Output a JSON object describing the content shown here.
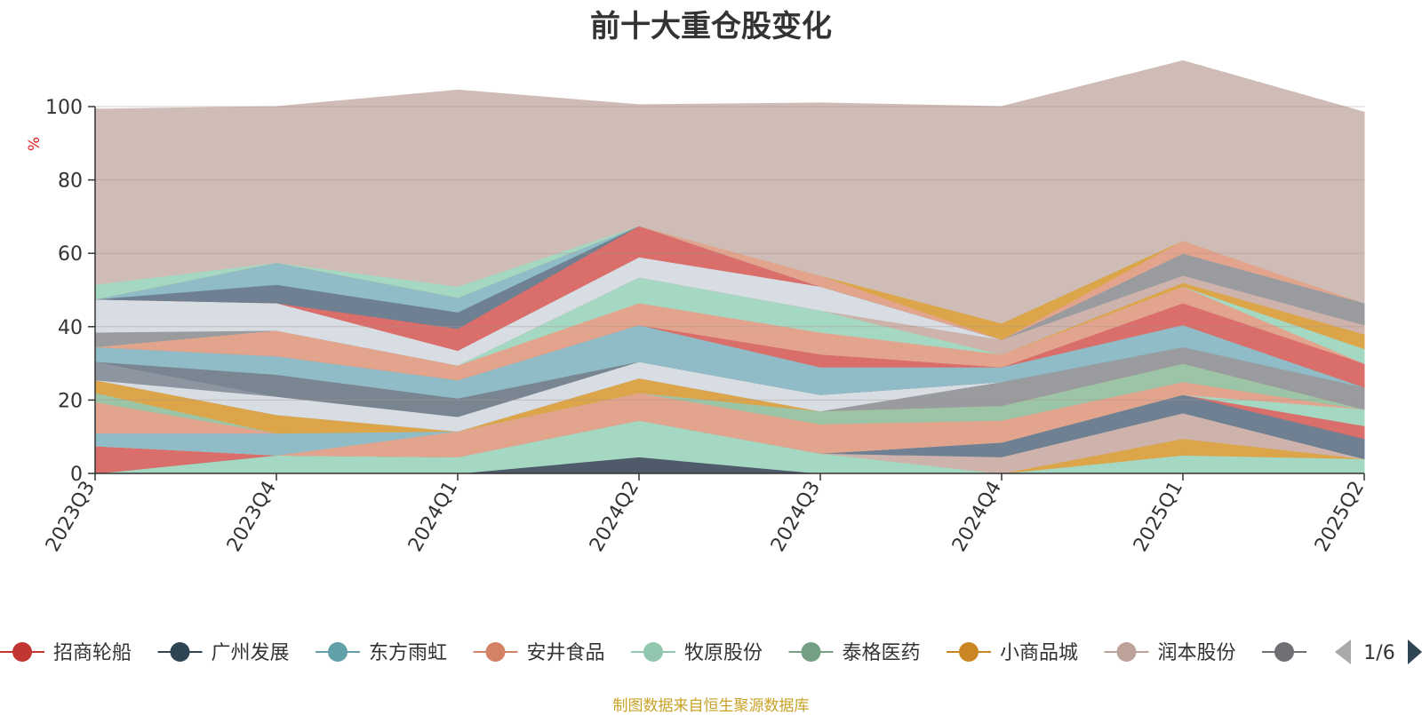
{
  "chart_data": {
    "type": "area",
    "title": "前十大重仓股变化",
    "ylabel": "%",
    "ylim": [
      0,
      100
    ],
    "yticks": [
      0,
      20,
      40,
      60,
      80,
      100
    ],
    "categories": [
      "2023Q3",
      "2023Q4",
      "2024Q1",
      "2024Q2",
      "2024Q3",
      "2024Q4",
      "2025Q1",
      "2025Q2"
    ],
    "grid": true,
    "legend_position": "bottom",
    "legend_page": "1/6",
    "series": [
      {
        "values": [
          0,
          0,
          0,
          4.5,
          0,
          0,
          0,
          0
        ],
        "color": "#4f5b6b"
      },
      {
        "values": [
          0,
          5,
          4.5,
          10,
          5.5,
          0,
          5,
          4
        ],
        "color": "#a5d8c3"
      },
      {
        "values": [
          0,
          0,
          0,
          0,
          0,
          0,
          4.5,
          0
        ],
        "color": "#dca54a"
      },
      {
        "values": [
          0,
          0,
          0,
          0,
          0,
          4.5,
          7,
          0
        ],
        "color": "#cdb3ac"
      },
      {
        "values": [
          0,
          0,
          0,
          0,
          0,
          4,
          5,
          5.5
        ],
        "color": "#6e8091"
      },
      {
        "values": [
          7.5,
          0,
          0,
          0,
          0,
          0,
          0,
          3.5
        ],
        "color": "#d96e6a"
      },
      {
        "values": [
          0,
          0,
          0,
          0,
          0,
          0,
          0,
          4.5
        ],
        "color": "#a5d8c3"
      },
      {
        "values": [
          0,
          0,
          7,
          7.5,
          8,
          6,
          3.5,
          0
        ],
        "color": "#e3a48e"
      },
      {
        "values": [
          3.5,
          6,
          0,
          0,
          0,
          0,
          0,
          0
        ],
        "color": "#8fbcc6"
      },
      {
        "values": [
          8.5,
          0,
          0,
          0,
          0,
          0,
          0,
          0
        ],
        "color": "#e3a48e"
      },
      {
        "values": [
          2.5,
          0,
          0,
          0,
          3.5,
          4,
          5,
          0
        ],
        "color": "#9cc5a8"
      },
      {
        "values": [
          3.5,
          5,
          0,
          4,
          0,
          0,
          0,
          0
        ],
        "color": "#dca54a"
      },
      {
        "values": [
          0,
          0,
          0,
          0,
          0,
          6.5,
          4.5,
          6
        ],
        "color": "#9a9b9f"
      },
      {
        "values": [
          0,
          5,
          4,
          4.5,
          4.5,
          0,
          0,
          0
        ],
        "color": "#d8dce3"
      },
      {
        "values": [
          5,
          0,
          0,
          0,
          0,
          0,
          0,
          0
        ],
        "color": "#8c95a0"
      },
      {
        "values": [
          0,
          6,
          5,
          0,
          0,
          0,
          0,
          0
        ],
        "color": "#7a8592"
      },
      {
        "values": [
          4,
          5,
          5,
          10,
          7.5,
          4,
          6,
          0
        ],
        "color": "#8fbcc6"
      },
      {
        "values": [
          0,
          0,
          0,
          0,
          3.5,
          0,
          6,
          6.5
        ],
        "color": "#d96e6a"
      },
      {
        "values": [
          0,
          7,
          4,
          6,
          6,
          3.5,
          4.5,
          0
        ],
        "color": "#e3a48e"
      },
      {
        "values": [
          0,
          0,
          0,
          7,
          6,
          0,
          0,
          4
        ],
        "color": "#a5d8c3"
      },
      {
        "values": [
          0,
          0,
          0,
          0,
          0,
          0,
          1,
          4
        ],
        "color": "#dca54a"
      },
      {
        "values": [
          0,
          0,
          0,
          0,
          0,
          4,
          2,
          2.5
        ],
        "color": "#cdb3ac"
      },
      {
        "values": [
          4,
          0,
          0,
          0,
          0,
          0,
          6,
          6
        ],
        "color": "#9a9b9f"
      },
      {
        "values": [
          9,
          7.5,
          4,
          5.5,
          6.5,
          0,
          0,
          0
        ],
        "color": "#d8dce3"
      },
      {
        "values": [
          0,
          0,
          6,
          8.5,
          0,
          0,
          0,
          0
        ],
        "color": "#d96e6a"
      },
      {
        "values": [
          0,
          5,
          4.5,
          0,
          0,
          0,
          0,
          0
        ],
        "color": "#6e8091"
      },
      {
        "values": [
          0,
          6,
          4,
          0,
          0,
          0,
          0,
          0
        ],
        "color": "#8fbcc6"
      },
      {
        "values": [
          0,
          0,
          0,
          0,
          3,
          0,
          3.5,
          0
        ],
        "color": "#e3a48e"
      },
      {
        "values": [
          0,
          0,
          0,
          0,
          0,
          4.5,
          0,
          0
        ],
        "color": "#dca54a"
      },
      {
        "values": [
          4,
          0,
          3,
          0,
          0,
          0,
          0,
          0
        ],
        "color": "#a5d8c3"
      },
      {
        "values": [
          47.8,
          42.5,
          53.5,
          33,
          47,
          59,
          49,
          52
        ],
        "color": "#cfbcb6"
      }
    ],
    "legend": [
      {
        "name": "招商轮船",
        "color": "#c23531"
      },
      {
        "name": "广州发展",
        "color": "#2f4554"
      },
      {
        "name": "东方雨虹",
        "color": "#61a0a8"
      },
      {
        "name": "安井食品",
        "color": "#d48265"
      },
      {
        "name": "牧原股份",
        "color": "#91c7ae"
      },
      {
        "name": "泰格医药",
        "color": "#749f83"
      },
      {
        "name": "小商品城",
        "color": "#ca8622"
      },
      {
        "name": "润本股份",
        "color": "#bda29a"
      },
      {
        "name": "",
        "color": "#6e7074"
      }
    ]
  },
  "source_note": "制图数据来自恒生聚源数据库"
}
